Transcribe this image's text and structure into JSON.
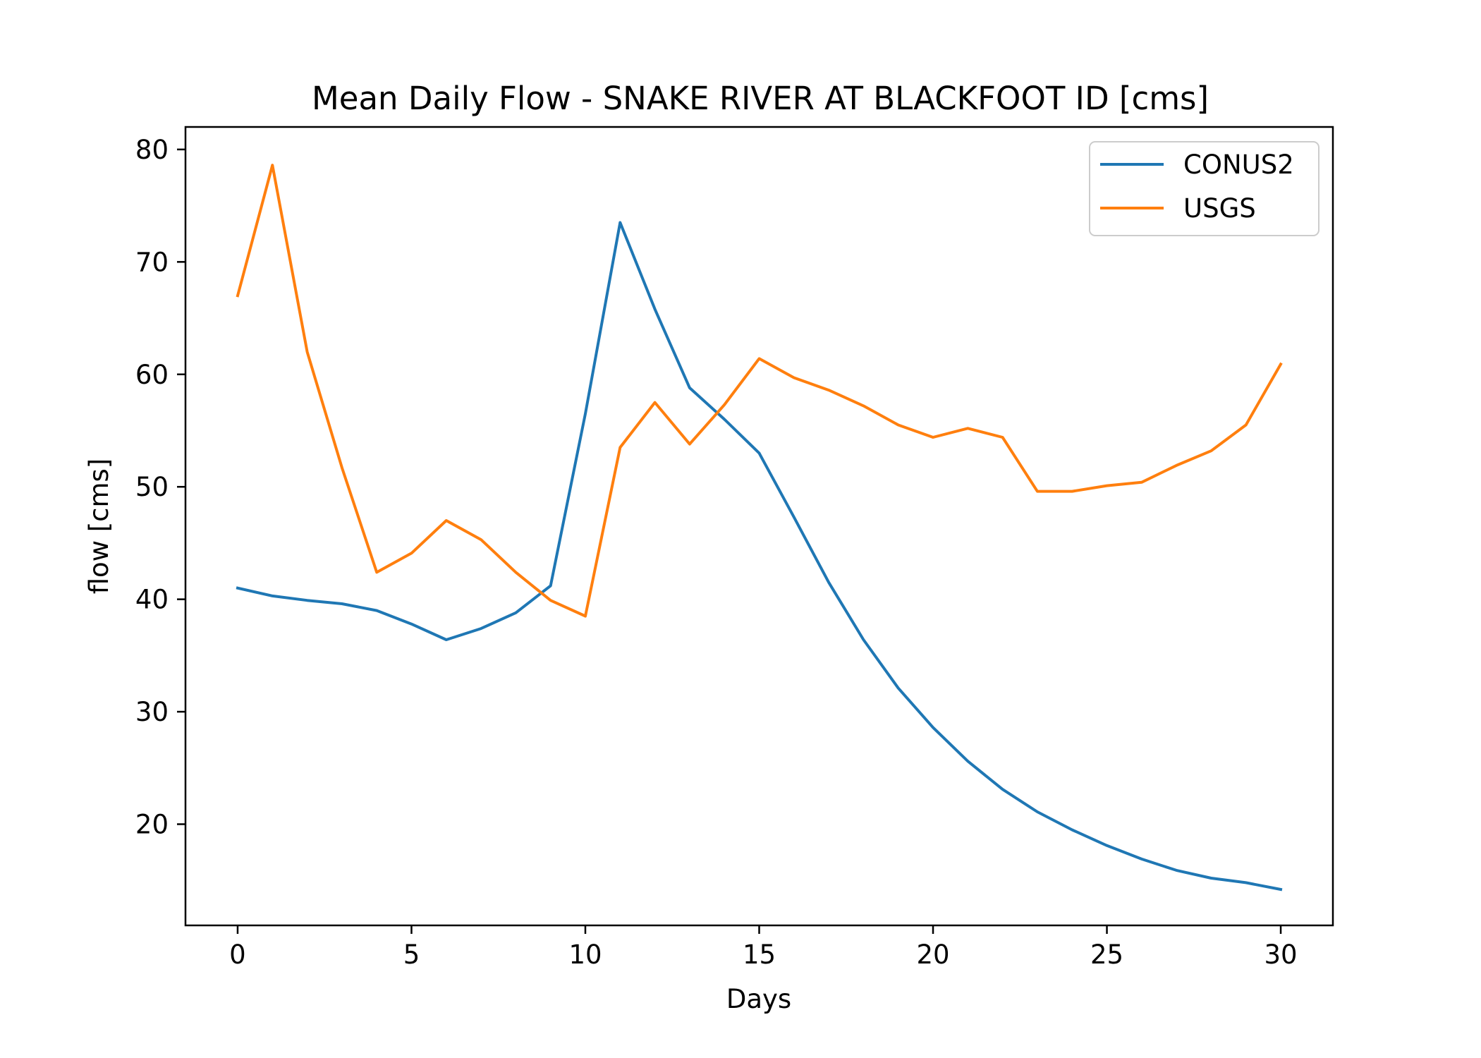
{
  "chart_data": {
    "type": "line",
    "title": "Mean Daily Flow - SNAKE RIVER AT BLACKFOOT ID [cms]",
    "xlabel": "Days",
    "ylabel": "flow [cms]",
    "xlim": [
      -1.5,
      31.5
    ],
    "ylim": [
      11,
      82
    ],
    "xticks": [
      0,
      5,
      10,
      15,
      20,
      25,
      30
    ],
    "yticks": [
      20,
      30,
      40,
      50,
      60,
      70,
      80
    ],
    "grid": false,
    "legend_position": "top-right",
    "x": [
      0,
      1,
      2,
      3,
      4,
      5,
      6,
      7,
      8,
      9,
      10,
      11,
      12,
      13,
      14,
      15,
      16,
      17,
      18,
      19,
      20,
      21,
      22,
      23,
      24,
      25,
      26,
      27,
      28,
      29,
      30
    ],
    "series": [
      {
        "name": "CONUS2",
        "color": "#1f77b4",
        "values": [
          41.0,
          40.3,
          39.9,
          39.6,
          39.0,
          37.8,
          36.4,
          37.4,
          38.8,
          41.2,
          56.5,
          73.5,
          65.8,
          58.8,
          56.0,
          53.0,
          47.3,
          41.5,
          36.4,
          32.1,
          28.6,
          25.6,
          23.1,
          21.1,
          19.5,
          18.1,
          16.9,
          15.9,
          15.2,
          14.8,
          14.2
        ]
      },
      {
        "name": "USGS",
        "color": "#ff7f0e",
        "values": [
          67.0,
          78.6,
          62.0,
          51.7,
          42.4,
          44.1,
          47.0,
          45.3,
          42.4,
          39.9,
          38.5,
          53.5,
          57.5,
          53.8,
          57.3,
          61.4,
          59.7,
          58.6,
          57.2,
          55.5,
          54.4,
          55.2,
          54.4,
          49.6,
          49.6,
          50.1,
          50.4,
          51.9,
          53.2,
          55.5,
          60.9
        ]
      }
    ]
  }
}
